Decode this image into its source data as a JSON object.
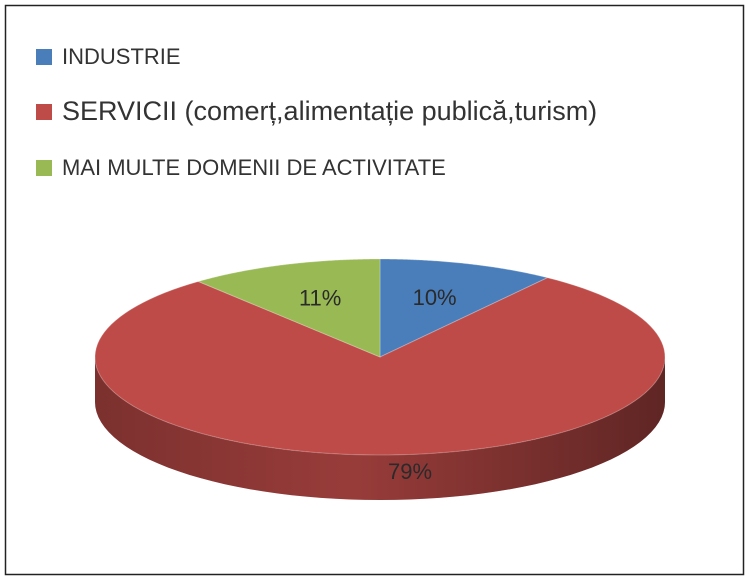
{
  "chart_data": {
    "type": "pie3d",
    "categories": [
      "INDUSTRIE",
      "SERVICII (comerț,alimentație publică,turism)",
      "MAI MULTE DOMENII DE ACTIVITATE"
    ],
    "values": [
      10,
      79,
      11
    ],
    "value_labels": [
      "10%",
      "79%",
      "11%"
    ],
    "colors": [
      "#4a7ebb",
      "#be4b48",
      "#98b954"
    ],
    "legend": "top-left"
  }
}
